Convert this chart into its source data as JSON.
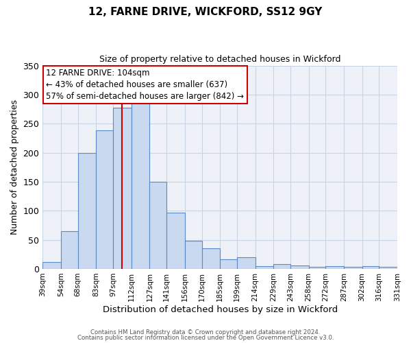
{
  "title1": "12, FARNE DRIVE, WICKFORD, SS12 9GY",
  "title2": "Size of property relative to detached houses in Wickford",
  "xlabel": "Distribution of detached houses by size in Wickford",
  "ylabel": "Number of detached properties",
  "bar_left_edges": [
    39,
    54,
    68,
    83,
    97,
    112,
    127,
    141,
    156,
    170,
    185,
    199,
    214,
    229,
    243,
    258,
    272,
    287,
    302,
    316
  ],
  "bar_heights": [
    12,
    65,
    200,
    238,
    278,
    290,
    150,
    97,
    48,
    35,
    17,
    20,
    5,
    8,
    6,
    3,
    5,
    3,
    5,
    3
  ],
  "last_edge": 331,
  "tick_labels": [
    "39sqm",
    "54sqm",
    "68sqm",
    "83sqm",
    "97sqm",
    "112sqm",
    "127sqm",
    "141sqm",
    "156sqm",
    "170sqm",
    "185sqm",
    "199sqm",
    "214sqm",
    "229sqm",
    "243sqm",
    "258sqm",
    "272sqm",
    "287sqm",
    "302sqm",
    "316sqm",
    "331sqm"
  ],
  "bar_face_color": "#c9d9f0",
  "bar_edge_color": "#5a8ac6",
  "vline_x": 104,
  "vline_color": "#cc0000",
  "annotation_line1": "12 FARNE DRIVE: 104sqm",
  "annotation_line2": "← 43% of detached houses are smaller (637)",
  "annotation_line3": "57% of semi-detached houses are larger (842) →",
  "annotation_box_color": "#cc0000",
  "annotation_box_facecolor": "white",
  "ylim": [
    0,
    350
  ],
  "yticks": [
    0,
    50,
    100,
    150,
    200,
    250,
    300,
    350
  ],
  "grid_color": "#c8d4e4",
  "background_color": "#eef2f8",
  "footer1": "Contains HM Land Registry data © Crown copyright and database right 2024.",
  "footer2": "Contains public sector information licensed under the Open Government Licence v3.0."
}
